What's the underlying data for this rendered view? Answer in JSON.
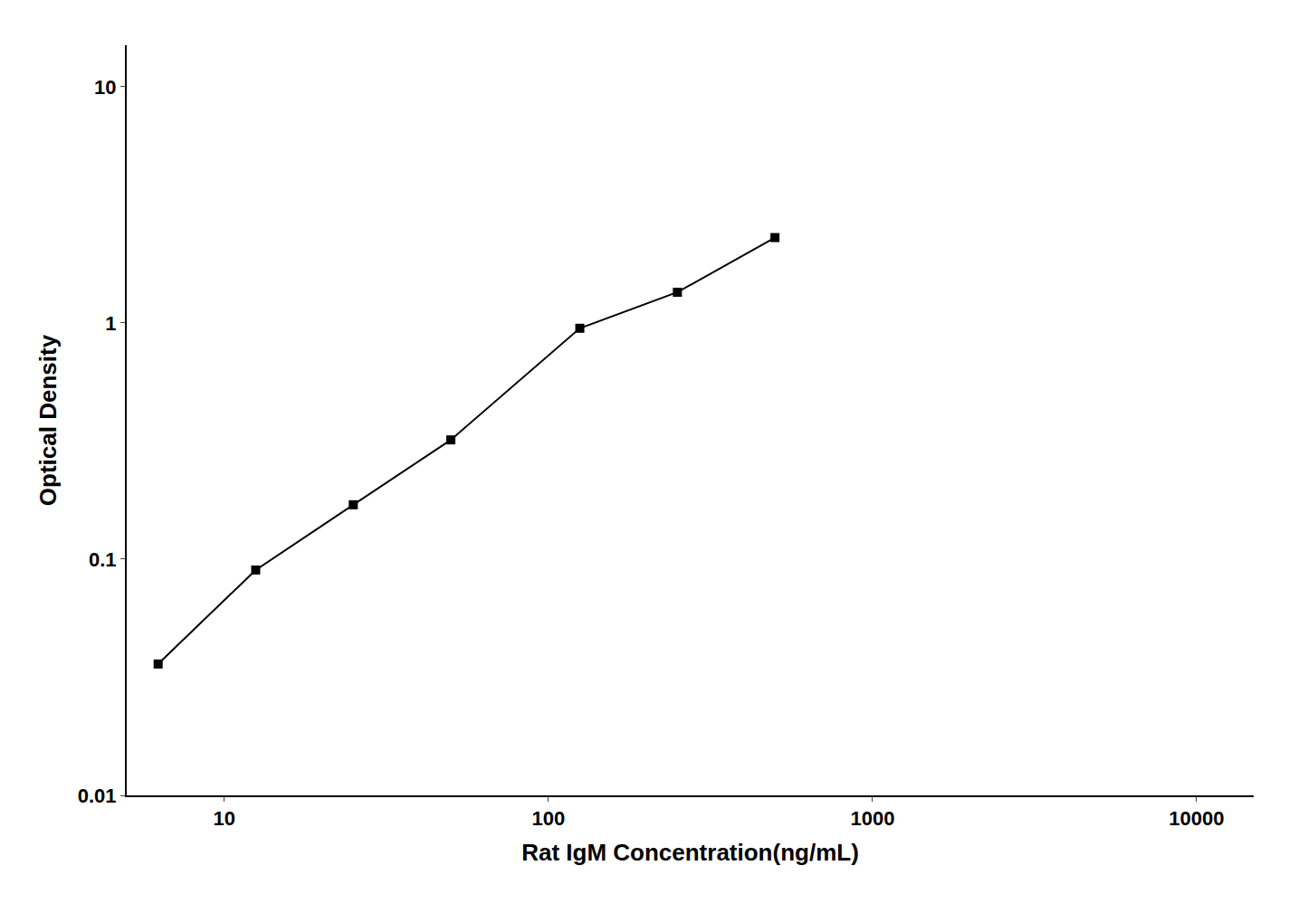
{
  "chart_data": {
    "type": "line",
    "x": [
      6.25,
      12.5,
      25,
      50,
      125,
      250,
      500
    ],
    "values": [
      0.036,
      0.09,
      0.17,
      0.32,
      0.95,
      1.35,
      2.3
    ],
    "xlabel": "Rat IgM Concentration(ng/mL)",
    "ylabel": "Optical Density",
    "xlim": [
      5,
      15000
    ],
    "ylim": [
      0.01,
      15
    ],
    "xticks": [
      10,
      100,
      1000,
      10000
    ],
    "yticks": [
      0.01,
      0.1,
      1,
      10
    ],
    "log": true,
    "grid": false,
    "color": "#000000",
    "marker": "square",
    "line_style": "solid"
  }
}
